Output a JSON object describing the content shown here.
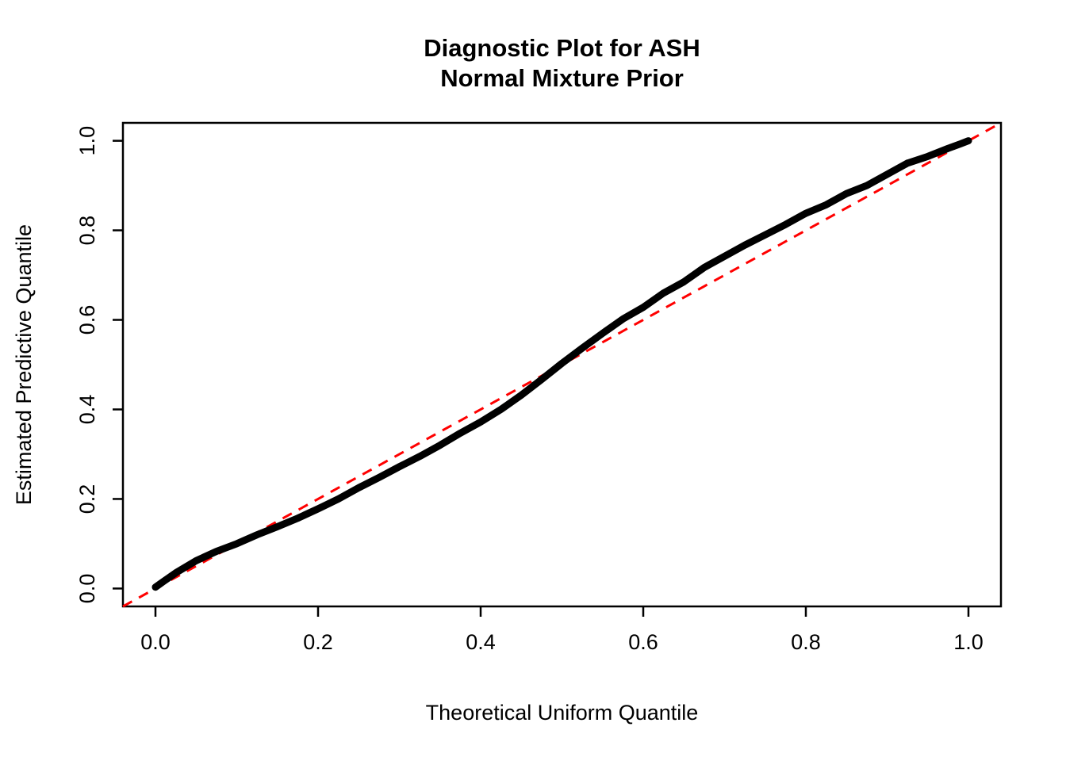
{
  "chart_data": {
    "type": "line",
    "title_line1": "Diagnostic Plot for ASH",
    "title_line2": "Normal Mixture Prior",
    "xlabel": "Theoretical Uniform Quantile",
    "ylabel": "Estimated Predictive Quantile",
    "xlim": [
      -0.04,
      1.04
    ],
    "ylim": [
      -0.04,
      1.04
    ],
    "x_ticks": [
      0.0,
      0.2,
      0.4,
      0.6,
      0.8,
      1.0
    ],
    "x_tick_labels": [
      "0.0",
      "0.2",
      "0.4",
      "0.6",
      "0.8",
      "1.0"
    ],
    "y_ticks": [
      0.0,
      0.2,
      0.4,
      0.6,
      0.8,
      1.0
    ],
    "y_tick_labels": [
      "0.0",
      "0.2",
      "0.4",
      "0.6",
      "0.8",
      "1.0"
    ],
    "grid": false,
    "legend": "none",
    "colors": {
      "curve": "#000000",
      "reference_line": "#ff0000",
      "axis": "#000000",
      "background": "#ffffff"
    },
    "reference_line": {
      "style": "dashed",
      "description": "y = x identity line",
      "from": [
        -0.04,
        -0.04
      ],
      "to": [
        1.04,
        1.04
      ]
    },
    "series": [
      {
        "name": "estimated-predictive-quantile-curve",
        "x": [
          0.0,
          0.01,
          0.025,
          0.05,
          0.075,
          0.1,
          0.125,
          0.15,
          0.175,
          0.2,
          0.225,
          0.25,
          0.275,
          0.3,
          0.325,
          0.35,
          0.375,
          0.4,
          0.425,
          0.45,
          0.475,
          0.5,
          0.525,
          0.55,
          0.575,
          0.6,
          0.625,
          0.65,
          0.675,
          0.7,
          0.725,
          0.75,
          0.775,
          0.8,
          0.825,
          0.85,
          0.875,
          0.9,
          0.925,
          0.95,
          0.975,
          0.99,
          1.0
        ],
        "y": [
          0.003,
          0.016,
          0.035,
          0.062,
          0.083,
          0.1,
          0.12,
          0.138,
          0.157,
          0.178,
          0.2,
          0.225,
          0.248,
          0.272,
          0.295,
          0.32,
          0.347,
          0.372,
          0.4,
          0.432,
          0.467,
          0.503,
          0.537,
          0.57,
          0.602,
          0.628,
          0.66,
          0.685,
          0.717,
          0.742,
          0.767,
          0.79,
          0.813,
          0.838,
          0.857,
          0.882,
          0.9,
          0.925,
          0.95,
          0.965,
          0.983,
          0.993,
          1.0
        ]
      }
    ]
  }
}
